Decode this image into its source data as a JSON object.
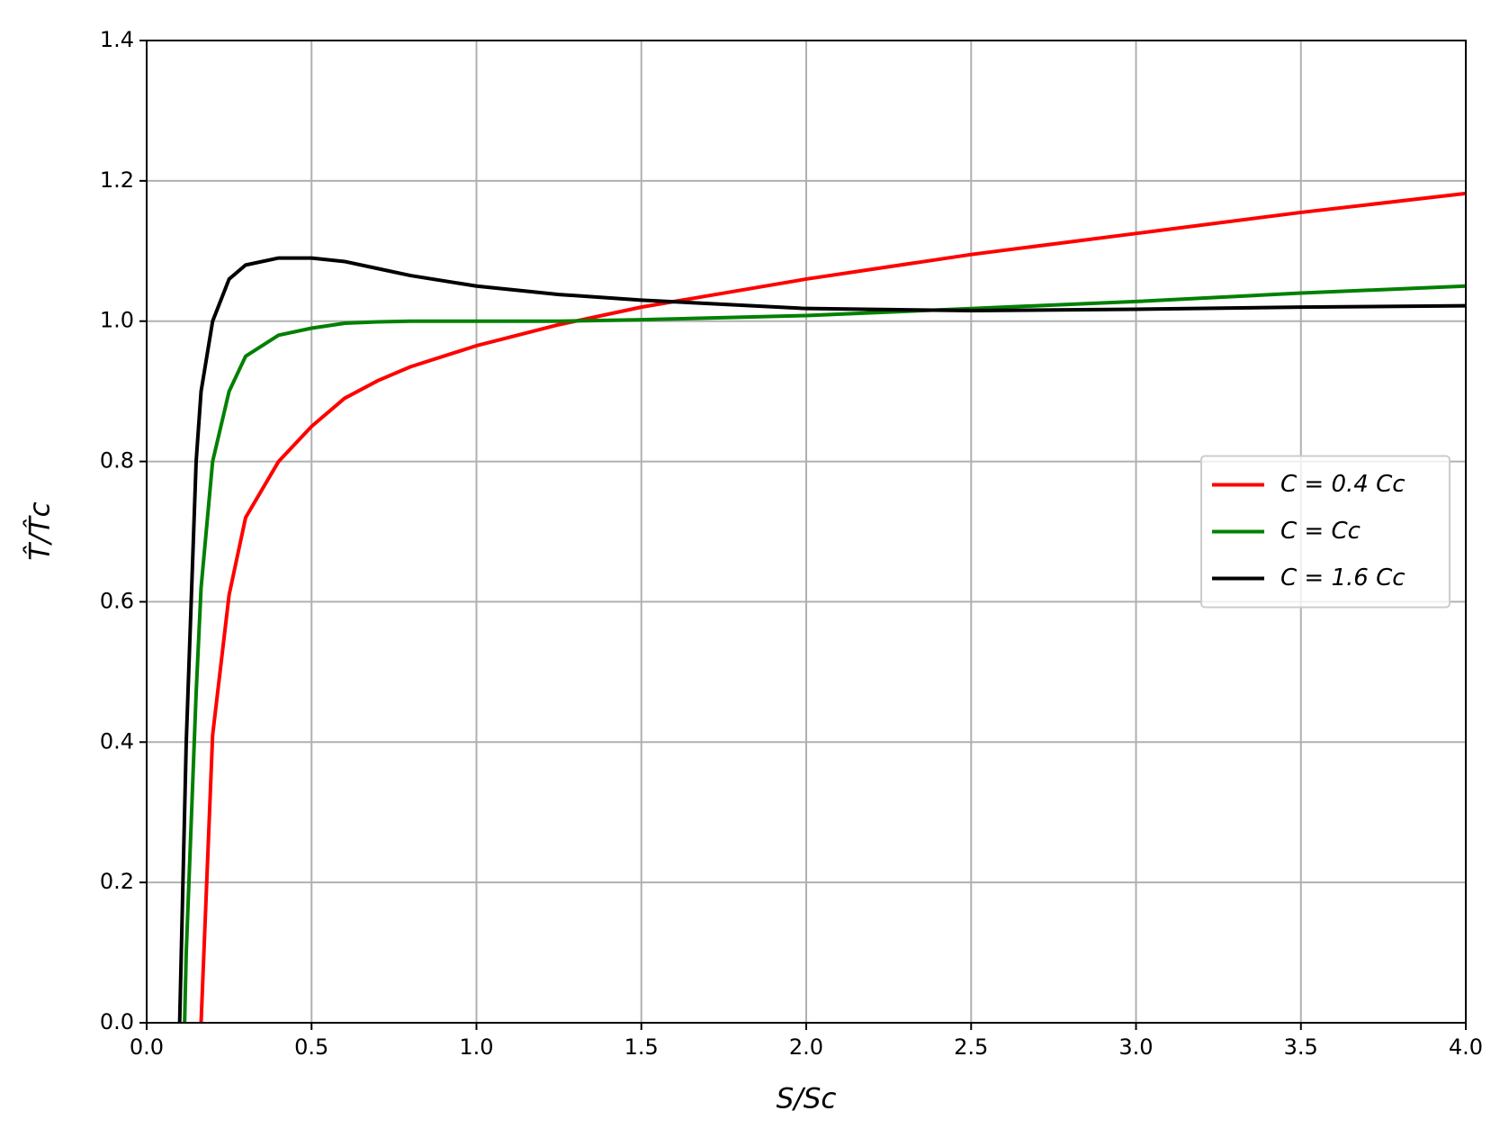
{
  "chart_data": {
    "type": "line",
    "x_label": "S/Sc",
    "y_label": "T̂/T̂c",
    "x": [
      0.1,
      0.115,
      0.12,
      0.15,
      0.165,
      0.2,
      0.25,
      0.3,
      0.4,
      0.5,
      0.6,
      0.7,
      0.8,
      1.0,
      1.25,
      1.5,
      2.0,
      2.5,
      3.0,
      3.5,
      4.0
    ],
    "series": [
      {
        "name": "C = 0.4 Cc",
        "color": "#ff0000",
        "values": [
          null,
          null,
          null,
          null,
          0,
          0.41,
          0.61,
          0.72,
          0.8,
          0.85,
          0.89,
          0.915,
          0.935,
          0.965,
          0.995,
          1.02,
          1.06,
          1.095,
          1.125,
          1.155,
          1.182
        ]
      },
      {
        "name": "C = Cc",
        "color": "#008000",
        "values": [
          null,
          0,
          0.1,
          0.47,
          0.62,
          0.8,
          0.9,
          0.95,
          0.98,
          0.99,
          0.997,
          0.999,
          1.0,
          1.0,
          1.0,
          1.002,
          1.008,
          1.018,
          1.028,
          1.04,
          1.05
        ]
      },
      {
        "name": "C = 1.6 Cc",
        "color": "#000000",
        "values": [
          0,
          0.3,
          0.4,
          0.8,
          0.9,
          1.0,
          1.06,
          1.08,
          1.09,
          1.09,
          1.085,
          1.075,
          1.065,
          1.05,
          1.038,
          1.03,
          1.018,
          1.015,
          1.017,
          1.02,
          1.022
        ]
      }
    ],
    "xlim": [
      0,
      4
    ],
    "ylim": [
      0,
      1.4
    ],
    "xticks": [
      {
        "value": 0,
        "label": "0.0"
      },
      0.5,
      {
        "value": 1,
        "label": "1.0"
      },
      1.5,
      {
        "value": 2,
        "label": "2.0"
      },
      2.5,
      {
        "value": 3,
        "label": "3.0"
      },
      3.5,
      {
        "value": 4,
        "label": "4.0"
      }
    ],
    "yticks": [
      {
        "value": 0,
        "label": "0.0"
      },
      0.2,
      0.4,
      0.6,
      0.8,
      {
        "value": 1,
        "label": "1.0"
      },
      1.2,
      1.4
    ],
    "grid": true,
    "legend": "center right"
  }
}
